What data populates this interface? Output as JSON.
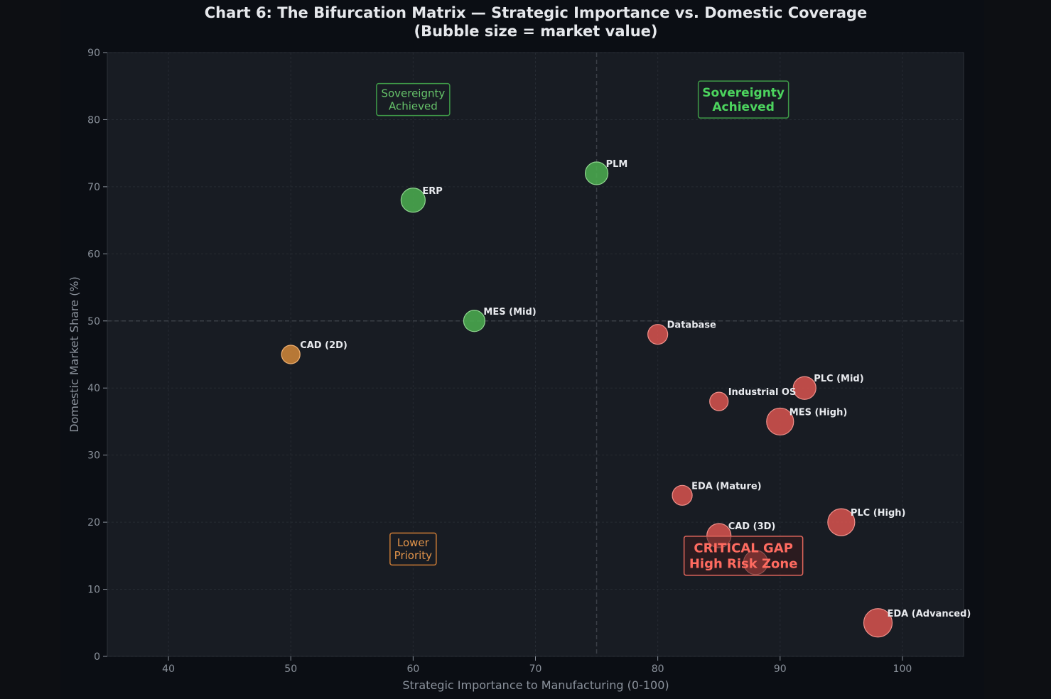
{
  "chart_data": {
    "type": "scatter",
    "title": "Chart 6: The Bifurcation Matrix — Strategic Importance vs. Domestic Coverage",
    "subtitle": "(Bubble size = market value)",
    "xlabel": "Strategic Importance to Manufacturing (0-100)",
    "ylabel": "Domestic Market Share (%)",
    "xlim": [
      35,
      105
    ],
    "ylim": [
      0,
      90
    ],
    "xticks": [
      40,
      50,
      60,
      70,
      80,
      90,
      100
    ],
    "yticks": [
      0,
      10,
      20,
      30,
      40,
      50,
      60,
      70,
      80,
      90
    ],
    "grid": true,
    "reference_lines": {
      "x": 75,
      "y": 50
    },
    "colors": {
      "sovereign": "#4caf50",
      "lower": "#d4883a",
      "critical": "#d9534f",
      "plot_bg": "#181c23",
      "critical_text": "#ff6b60"
    },
    "points": [
      {
        "label": "ERP",
        "x": 60,
        "y": 68,
        "size": 17,
        "category": "sovereign"
      },
      {
        "label": "PLM",
        "x": 75,
        "y": 72,
        "size": 16,
        "category": "sovereign"
      },
      {
        "label": "MES (Mid)",
        "x": 65,
        "y": 50,
        "size": 15,
        "category": "sovereign"
      },
      {
        "label": "CAD (2D)",
        "x": 50,
        "y": 45,
        "size": 13,
        "category": "lower"
      },
      {
        "label": "Database",
        "x": 80,
        "y": 48,
        "size": 14,
        "category": "critical"
      },
      {
        "label": "Industrial OS",
        "x": 85,
        "y": 38,
        "size": 13,
        "category": "critical"
      },
      {
        "label": "PLC (Mid)",
        "x": 92,
        "y": 40,
        "size": 16,
        "category": "critical"
      },
      {
        "label": "MES (High)",
        "x": 90,
        "y": 35,
        "size": 19,
        "category": "critical"
      },
      {
        "label": "EDA (Mature)",
        "x": 82,
        "y": 24,
        "size": 14,
        "category": "critical"
      },
      {
        "label": "PLC (High)",
        "x": 95,
        "y": 20,
        "size": 19,
        "category": "critical"
      },
      {
        "label": "CAD (3D)",
        "x": 85,
        "y": 18,
        "size": 17,
        "category": "critical"
      },
      {
        "label": "",
        "x": 88,
        "y": 14,
        "size": 17,
        "category": "critical"
      },
      {
        "label": "EDA (Advanced)",
        "x": 98,
        "y": 5,
        "size": 20,
        "category": "critical"
      }
    ],
    "annotations": [
      {
        "id": "sovereignty-small",
        "line1": "Sovereignty",
        "line2": "Achieved",
        "x": 60,
        "y": 83,
        "style": "small-green"
      },
      {
        "id": "sovereignty-large",
        "line1": "Sovereignty",
        "line2": "Achieved",
        "x": 87,
        "y": 83,
        "style": "large-green"
      },
      {
        "id": "lower-priority",
        "line1": "Lower",
        "line2": "Priority",
        "x": 60,
        "y": 16,
        "style": "orange"
      },
      {
        "id": "critical-gap",
        "line1": "CRITICAL GAP",
        "line2": "High Risk Zone",
        "x": 87,
        "y": 15,
        "style": "red"
      }
    ]
  }
}
